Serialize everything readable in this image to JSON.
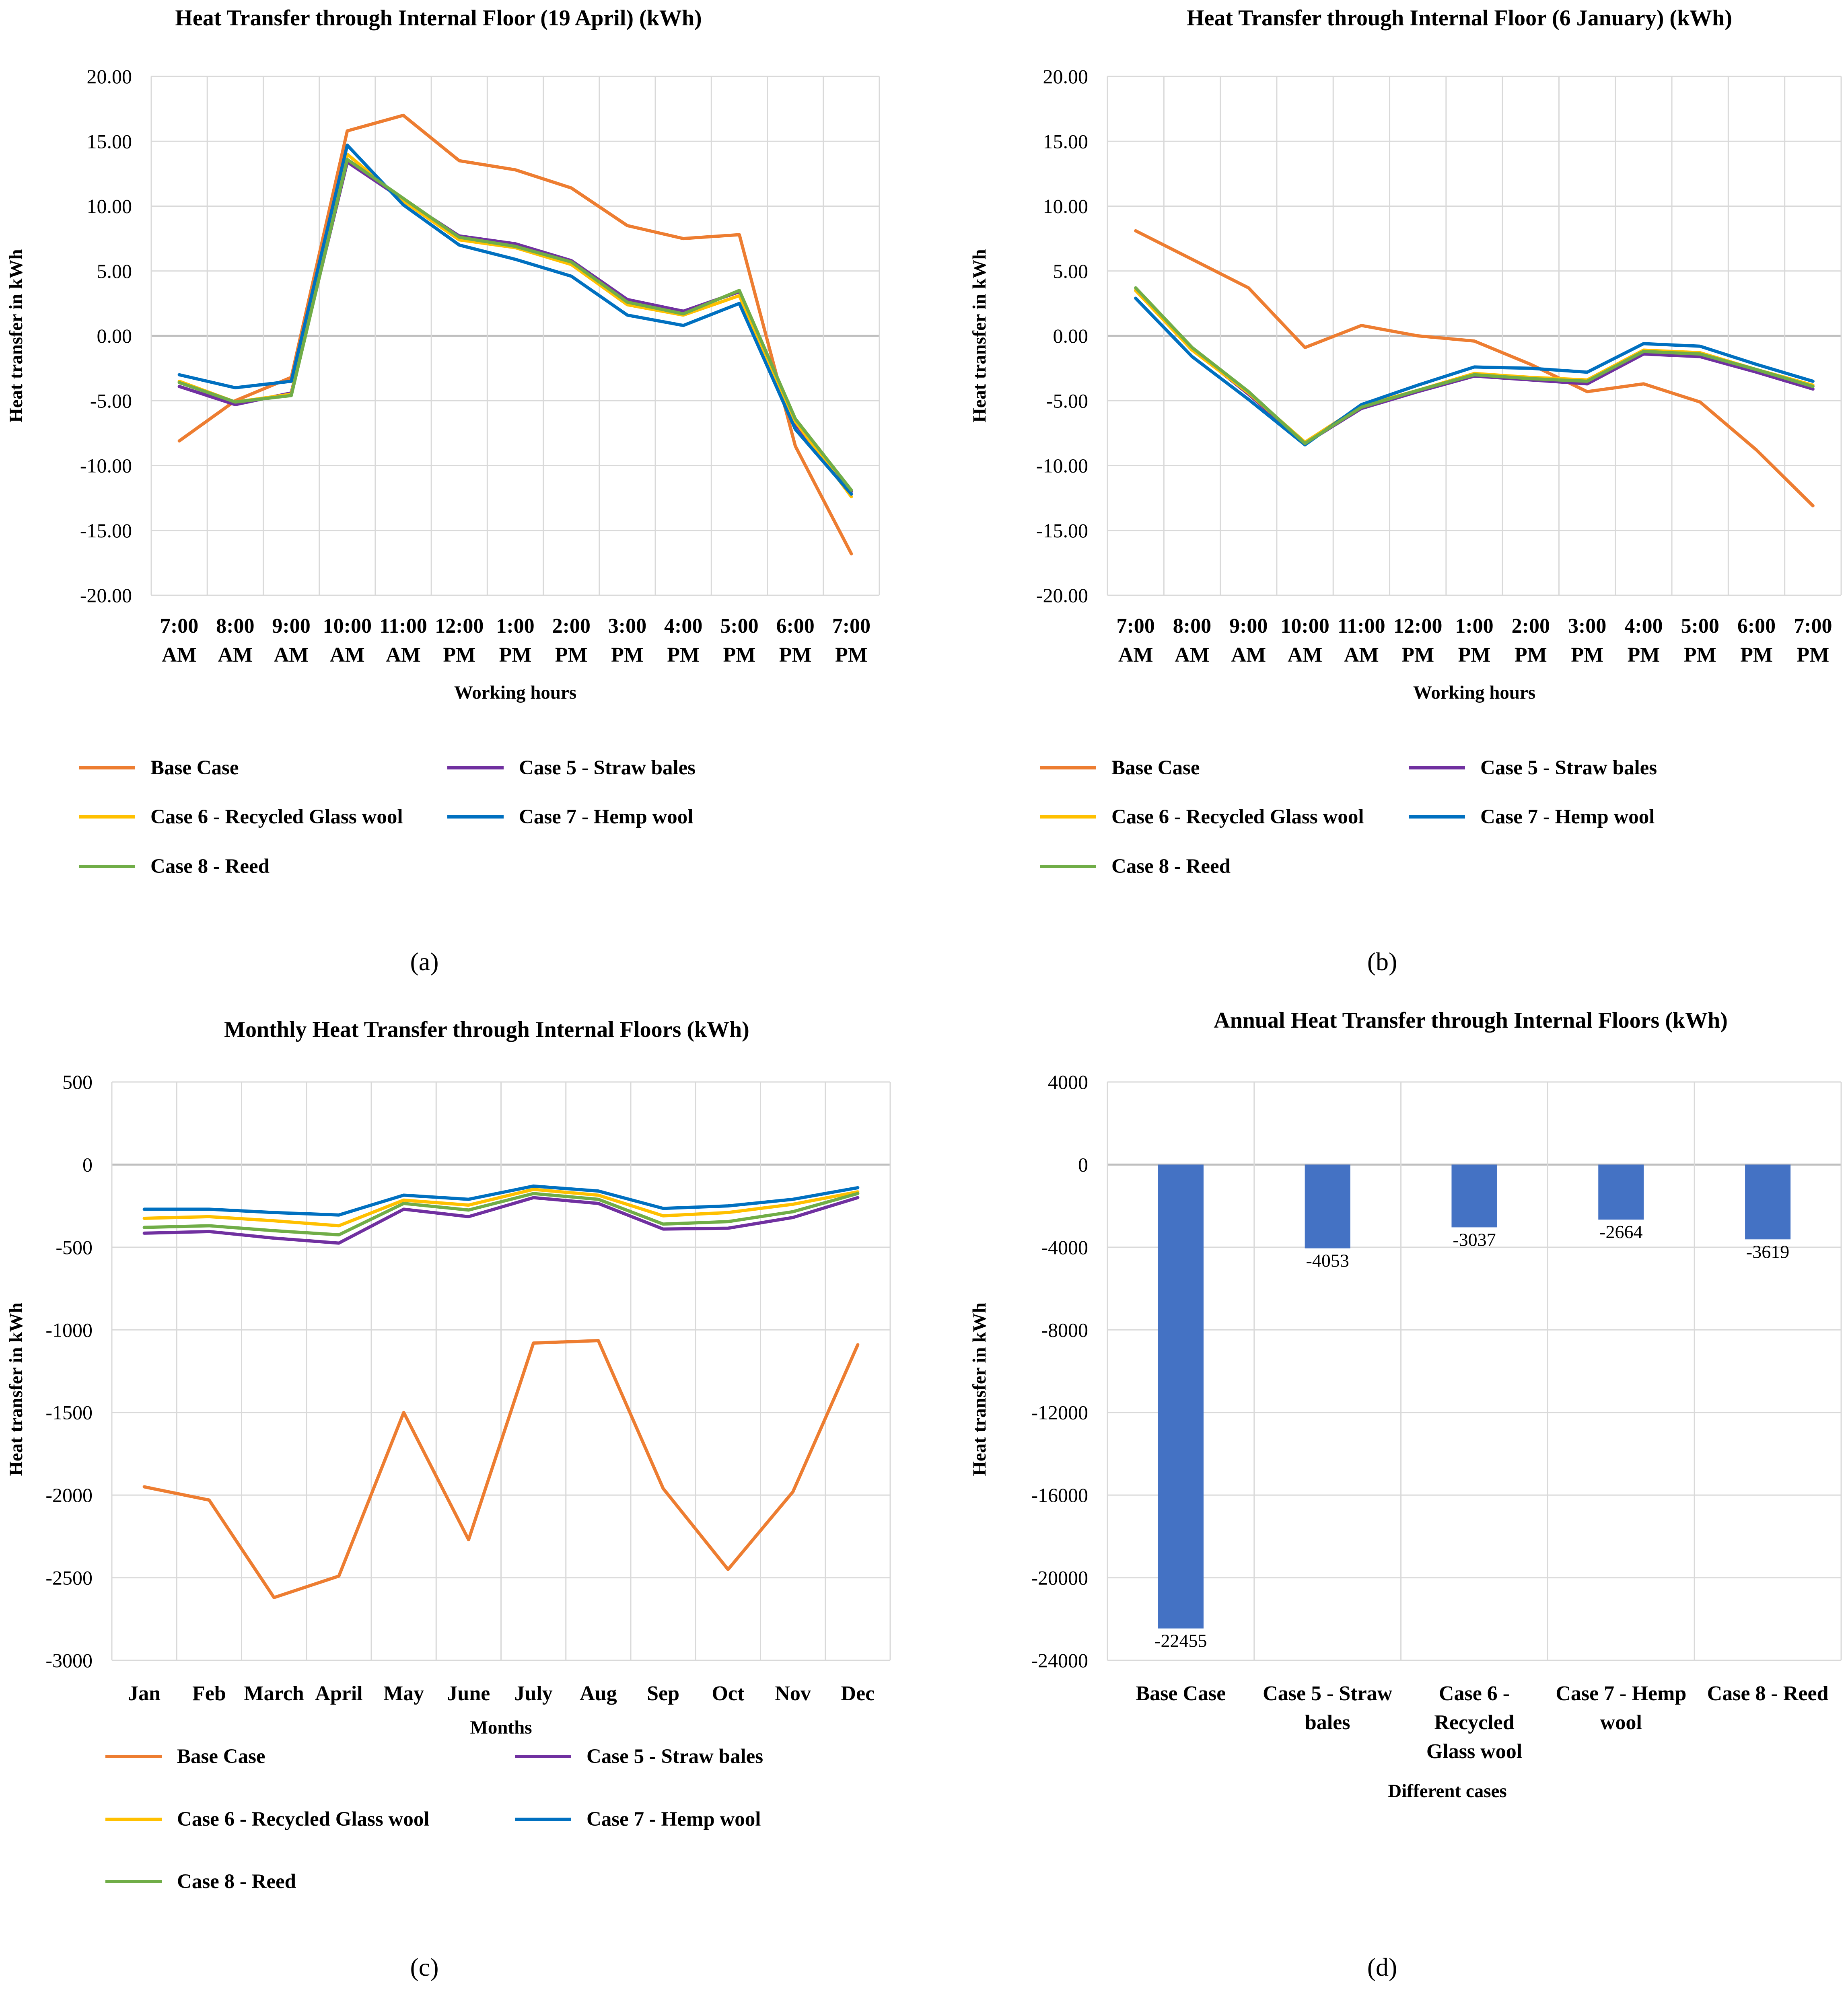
{
  "colors": {
    "base_case": "#ED7D31",
    "case5": "#7030A0",
    "case6": "#FFC000",
    "case7": "#0070C0",
    "case8": "#70AD47",
    "bar": "#4472C4",
    "grid": "#D9D9D9",
    "axis": "#BFBFBF",
    "text": "#000000"
  },
  "chart_data": [
    {
      "id": "a",
      "type": "line",
      "title": "Heat Transfer through Internal Floor (19 April) (kWh)",
      "xlabel": "Working hours",
      "ylabel": "Heat transfer in kWh",
      "ylim": [
        -20,
        20
      ],
      "yticks": [
        "20.00",
        "15.00",
        "10.00",
        "5.00",
        "0.00",
        "-5.00",
        "-10.00",
        "-15.00",
        "-20.00"
      ],
      "categories": [
        [
          "7:00",
          "AM"
        ],
        [
          "8:00",
          "AM"
        ],
        [
          "9:00",
          "AM"
        ],
        [
          "10:00",
          "AM"
        ],
        [
          "11:00",
          "AM"
        ],
        [
          "12:00",
          "PM"
        ],
        [
          "1:00",
          "PM"
        ],
        [
          "2:00",
          "PM"
        ],
        [
          "3:00",
          "PM"
        ],
        [
          "4:00",
          "PM"
        ],
        [
          "5:00",
          "PM"
        ],
        [
          "6:00",
          "PM"
        ],
        [
          "7:00",
          "PM"
        ]
      ],
      "panel_label": "(a)",
      "series": [
        {
          "name": "Base Case",
          "color_key": "base_case",
          "values": [
            -8.1,
            -5.0,
            -3.2,
            15.8,
            17.0,
            13.5,
            12.8,
            11.4,
            8.5,
            7.5,
            7.8,
            -8.5,
            -16.8
          ]
        },
        {
          "name": "Case 5 - Straw bales",
          "color_key": "case5",
          "values": [
            -3.9,
            -5.3,
            -4.4,
            13.4,
            10.5,
            7.7,
            7.1,
            5.8,
            2.8,
            1.9,
            3.4,
            -6.8,
            -12.0
          ]
        },
        {
          "name": "Case 6 - Recycled Glass wool",
          "color_key": "case6",
          "values": [
            -3.5,
            -5.1,
            -4.5,
            14.0,
            10.4,
            7.4,
            6.8,
            5.5,
            2.4,
            1.6,
            3.1,
            -6.6,
            -12.4
          ]
        },
        {
          "name": "Case 7 - Hemp wool",
          "color_key": "case7",
          "values": [
            -3.0,
            -4.0,
            -3.5,
            14.7,
            10.1,
            7.0,
            5.9,
            4.6,
            1.6,
            0.8,
            2.5,
            -7.2,
            -12.2
          ]
        },
        {
          "name": "Case 8 - Reed",
          "color_key": "case8",
          "values": [
            -3.6,
            -5.1,
            -4.6,
            13.6,
            10.6,
            7.6,
            6.9,
            5.7,
            2.6,
            1.7,
            3.5,
            -6.4,
            -11.9
          ]
        }
      ]
    },
    {
      "id": "b",
      "type": "line",
      "title": "Heat Transfer through Internal Floor (6 January) (kWh)",
      "xlabel": "Working hours",
      "ylabel": "Heat transfer in kWh",
      "ylim": [
        -20,
        20
      ],
      "yticks": [
        "20.00",
        "15.00",
        "10.00",
        "5.00",
        "0.00",
        "-5.00",
        "-10.00",
        "-15.00",
        "-20.00"
      ],
      "categories": [
        [
          "7:00",
          "AM"
        ],
        [
          "8:00",
          "AM"
        ],
        [
          "9:00",
          "AM"
        ],
        [
          "10:00",
          "AM"
        ],
        [
          "11:00",
          "AM"
        ],
        [
          "12:00",
          "PM"
        ],
        [
          "1:00",
          "PM"
        ],
        [
          "2:00",
          "PM"
        ],
        [
          "3:00",
          "PM"
        ],
        [
          "4:00",
          "PM"
        ],
        [
          "5:00",
          "PM"
        ],
        [
          "6:00",
          "PM"
        ],
        [
          "7:00",
          "PM"
        ]
      ],
      "panel_label": "(b)",
      "series": [
        {
          "name": "Base Case",
          "color_key": "base_case",
          "values": [
            8.1,
            5.9,
            3.7,
            -0.9,
            0.8,
            0.0,
            -0.4,
            -2.2,
            -4.3,
            -3.7,
            -5.1,
            -8.8,
            -13.1
          ]
        },
        {
          "name": "Case 5 - Straw bales",
          "color_key": "case5",
          "values": [
            3.5,
            -1.0,
            -4.5,
            -8.3,
            -5.6,
            -4.3,
            -3.1,
            -3.4,
            -3.7,
            -1.4,
            -1.6,
            -2.8,
            -4.1
          ]
        },
        {
          "name": "Case 6 - Recycled Glass wool",
          "color_key": "case6",
          "values": [
            3.5,
            -1.1,
            -4.4,
            -8.2,
            -5.4,
            -4.2,
            -2.9,
            -3.2,
            -3.4,
            -1.1,
            -1.3,
            -2.6,
            -3.8
          ]
        },
        {
          "name": "Case 7 - Hemp wool",
          "color_key": "case7",
          "values": [
            2.9,
            -1.6,
            -4.9,
            -8.4,
            -5.3,
            -3.8,
            -2.4,
            -2.5,
            -2.8,
            -0.6,
            -0.8,
            -2.2,
            -3.5
          ]
        },
        {
          "name": "Case 8 - Reed",
          "color_key": "case8",
          "values": [
            3.7,
            -0.9,
            -4.3,
            -8.3,
            -5.5,
            -4.2,
            -3.0,
            -3.3,
            -3.5,
            -1.2,
            -1.4,
            -2.6,
            -3.9
          ]
        }
      ]
    },
    {
      "id": "c",
      "type": "line",
      "title": "Monthly Heat Transfer through Internal Floors (kWh)",
      "xlabel": "Months",
      "ylabel": "Heat transfer in kWh",
      "ylim": [
        -3000,
        500
      ],
      "yticks": [
        "500",
        "0",
        "-500",
        "-1000",
        "-1500",
        "-2000",
        "-2500",
        "-3000"
      ],
      "categories": [
        [
          "Jan"
        ],
        [
          "Feb"
        ],
        [
          "March"
        ],
        [
          "April"
        ],
        [
          "May"
        ],
        [
          "June"
        ],
        [
          "July"
        ],
        [
          "Aug"
        ],
        [
          "Sep"
        ],
        [
          "Oct"
        ],
        [
          "Nov"
        ],
        [
          "Dec"
        ]
      ],
      "panel_label": "(c)",
      "series": [
        {
          "name": "Base Case",
          "color_key": "base_case",
          "values": [
            -1950,
            -2030,
            -2620,
            -2490,
            -1500,
            -2270,
            -1080,
            -1065,
            -1960,
            -2450,
            -1980,
            -1090
          ]
        },
        {
          "name": "Case 5 - Straw bales",
          "color_key": "case5",
          "values": [
            -415,
            -405,
            -445,
            -475,
            -270,
            -315,
            -200,
            -235,
            -390,
            -385,
            -320,
            -200
          ]
        },
        {
          "name": "Case 6 - Recycled Glass wool",
          "color_key": "case6",
          "values": [
            -325,
            -315,
            -340,
            -370,
            -215,
            -245,
            -150,
            -185,
            -310,
            -290,
            -240,
            -165
          ]
        },
        {
          "name": "Case 7 - Hemp wool",
          "color_key": "case7",
          "values": [
            -270,
            -270,
            -290,
            -305,
            -185,
            -210,
            -130,
            -160,
            -265,
            -250,
            -210,
            -140
          ]
        },
        {
          "name": "Case 8 - Reed",
          "color_key": "case8",
          "values": [
            -380,
            -370,
            -400,
            -425,
            -235,
            -275,
            -175,
            -210,
            -360,
            -345,
            -285,
            -175
          ]
        }
      ]
    },
    {
      "id": "d",
      "type": "bar",
      "title": "Annual Heat Transfer through Internal Floors (kWh)",
      "xlabel": "Different cases",
      "ylabel": "Heat transfer in kWh",
      "ylim": [
        -24000,
        4000
      ],
      "yticks": [
        "4000",
        "0",
        "-4000",
        "-8000",
        "-12000",
        "-16000",
        "-20000",
        "-24000"
      ],
      "categories": [
        [
          "Base Case"
        ],
        [
          "Case 5 - Straw",
          "bales"
        ],
        [
          "Case 6 -",
          "Recycled",
          "Glass wool"
        ],
        [
          "Case 7 - Hemp",
          "wool"
        ],
        [
          "Case 8 - Reed"
        ]
      ],
      "values": [
        -22455,
        -4053,
        -3037,
        -2664,
        -3619
      ],
      "value_labels": [
        "-22455",
        "-4053",
        "-3037",
        "-2664",
        "-3619"
      ],
      "panel_label": "(d)"
    }
  ]
}
